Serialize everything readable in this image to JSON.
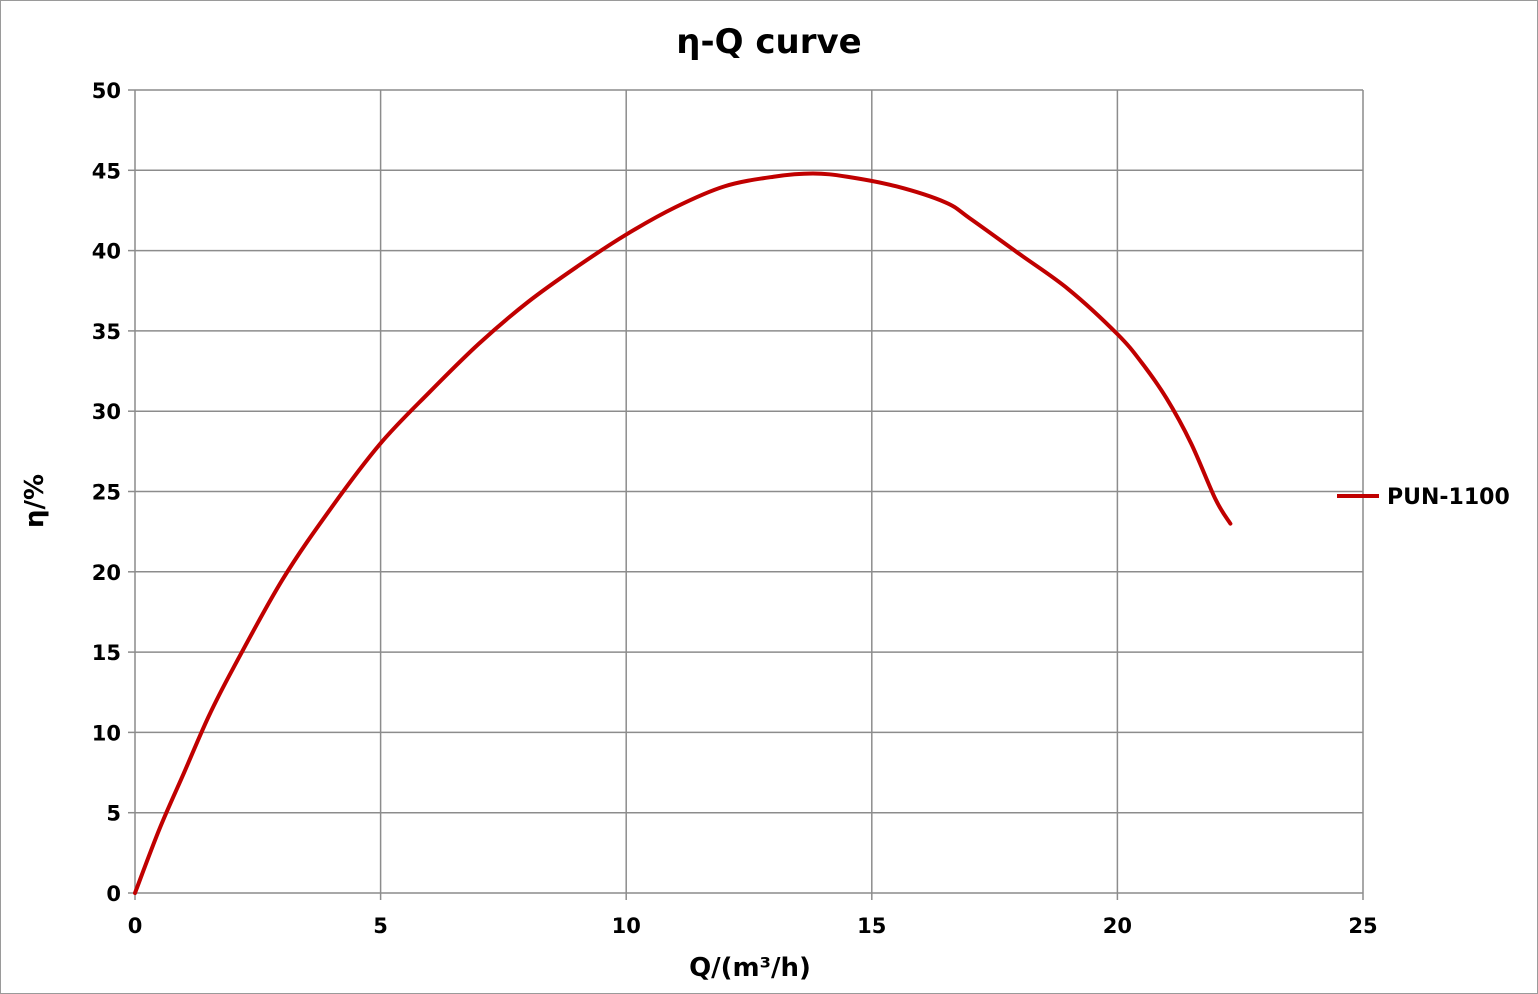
{
  "chart_data": {
    "type": "line",
    "title": "η-Q  curve",
    "xlabel": "Q/(m³/h)",
    "ylabel": "η/%",
    "xlim": [
      0,
      25
    ],
    "ylim": [
      0,
      50
    ],
    "x_ticks": [
      0,
      5,
      10,
      15,
      20,
      25
    ],
    "y_ticks": [
      0,
      5,
      10,
      15,
      20,
      25,
      30,
      35,
      40,
      45,
      50
    ],
    "grid": true,
    "legend_position": "right",
    "series": [
      {
        "name": "PUN-1100",
        "color": "#c00000",
        "x": [
          0,
          0.5,
          1,
          1.5,
          2,
          3,
          4,
          5,
          6,
          7,
          8,
          9,
          10,
          11,
          12,
          13,
          13.8,
          14.5,
          15.5,
          16.5,
          17,
          18,
          19,
          20,
          20.5,
          21,
          21.5,
          22,
          22.3
        ],
        "y": [
          0,
          4,
          7.5,
          11,
          14,
          19.5,
          24,
          28,
          31.2,
          34.2,
          36.8,
          39,
          41,
          42.7,
          44,
          44.6,
          44.8,
          44.6,
          44,
          43,
          42,
          39.8,
          37.6,
          34.8,
          33,
          30.8,
          28,
          24.5,
          23
        ]
      }
    ]
  }
}
